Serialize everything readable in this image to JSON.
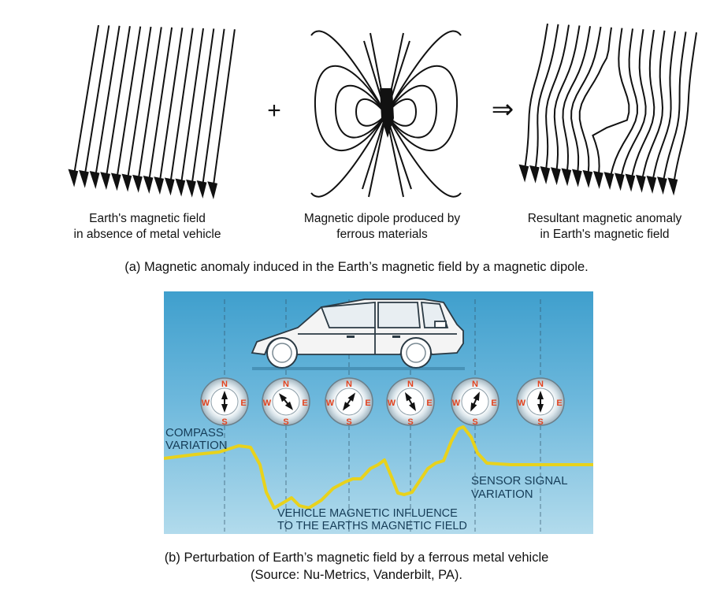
{
  "panel_a": {
    "plus_symbol": "+",
    "arrow_symbol": "⇒",
    "captions": [
      {
        "line1": "Earth's magnetic field",
        "line2": "in absence of metal vehicle"
      },
      {
        "line1": "Magnetic dipole produced by",
        "line2": "ferrous materials"
      },
      {
        "line1": "Resultant magnetic anomaly",
        "line2": "in Earth's magnetic field"
      }
    ],
    "title": "(a) Magnetic anomaly induced in the Earth’s magnetic field by a magnetic dipole."
  },
  "panel_b": {
    "compass_letters": {
      "n": "N",
      "s": "S",
      "w": "W",
      "e": "E"
    },
    "compass_count": 6,
    "labels": {
      "compass_variation_1": "COMPASS",
      "compass_variation_2": "VARIATION",
      "sensor_signal_1": "SENSOR SIGNAL",
      "sensor_signal_2": "VARIATION",
      "vehicle_influence_1": "VEHICLE MAGNETIC INFLUENCE",
      "vehicle_influence_2": "TO THE EARTHS MAGNETIC FIELD"
    },
    "colors": {
      "sky_top": "#4ea8d2",
      "sky_bottom": "#a9d6ea",
      "signal": "#e8d21c",
      "compass_red": "#e2431f"
    },
    "title_line1": "(b) Perturbation of Earth’s magnetic field by a ferrous metal vehicle",
    "title_line2": "(Source: Nu-Metrics, Vanderbilt, PA)."
  }
}
